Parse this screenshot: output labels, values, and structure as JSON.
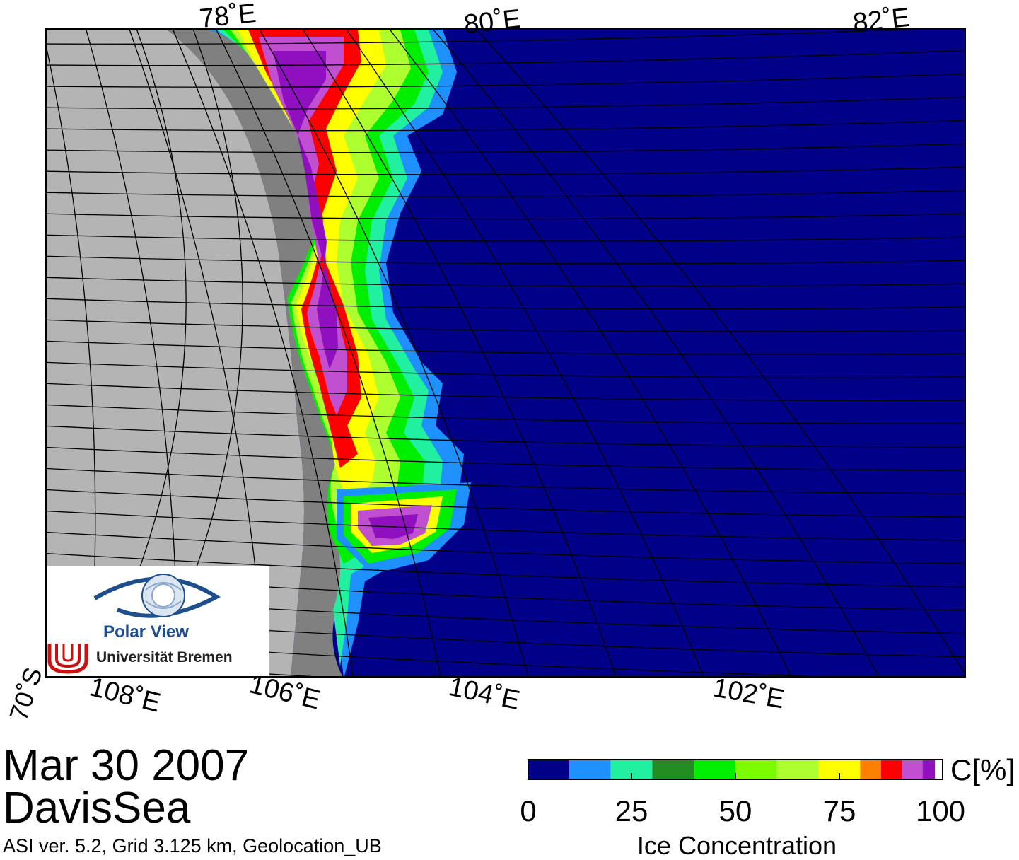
{
  "map": {
    "top_longitude_labels": [
      "78˚E",
      "80˚E",
      "82˚E"
    ],
    "bottom_longitude_labels": [
      "108˚E",
      "106˚E",
      "104˚E",
      "102˚E"
    ],
    "latitude_label": "70˚S",
    "colors": {
      "ocean": "#000088",
      "land": "#b4b4b4",
      "ice_shelf": "#808080",
      "grid": "#000000"
    }
  },
  "logo": {
    "title": "Polar View",
    "institution": "Universität Bremen",
    "icon": "eye-globe-icon",
    "brand_color": "#1f4e8c",
    "accent_color": "#cc1111"
  },
  "caption": {
    "date": "Mar 30 2007",
    "region": "DavisSea",
    "info": "ASI ver. 5.2,  Grid 3.125 km, Geolocation_UB"
  },
  "colorbar": {
    "title": "Ice Concentration",
    "unit": "C[%]",
    "ticks": [
      "0",
      "25",
      "50",
      "75",
      "100"
    ],
    "bins": [
      {
        "from": 0,
        "to": 10,
        "color": "#000088"
      },
      {
        "from": 10,
        "to": 20,
        "color": "#1e90ff"
      },
      {
        "from": 20,
        "to": 30,
        "color": "#20f0a0"
      },
      {
        "from": 30,
        "to": 40,
        "color": "#228b22"
      },
      {
        "from": 40,
        "to": 50,
        "color": "#00ee00"
      },
      {
        "from": 50,
        "to": 60,
        "color": "#7cfc00"
      },
      {
        "from": 60,
        "to": 70,
        "color": "#adff2f"
      },
      {
        "from": 70,
        "to": 80,
        "color": "#ffff00"
      },
      {
        "from": 80,
        "to": 85,
        "color": "#ff8000"
      },
      {
        "from": 85,
        "to": 90,
        "color": "#ff0000"
      },
      {
        "from": 90,
        "to": 95,
        "color": "#c050d0"
      },
      {
        "from": 95,
        "to": 98,
        "color": "#9010c0"
      },
      {
        "from": 98,
        "to": 100,
        "color": "#ffffff"
      }
    ]
  }
}
